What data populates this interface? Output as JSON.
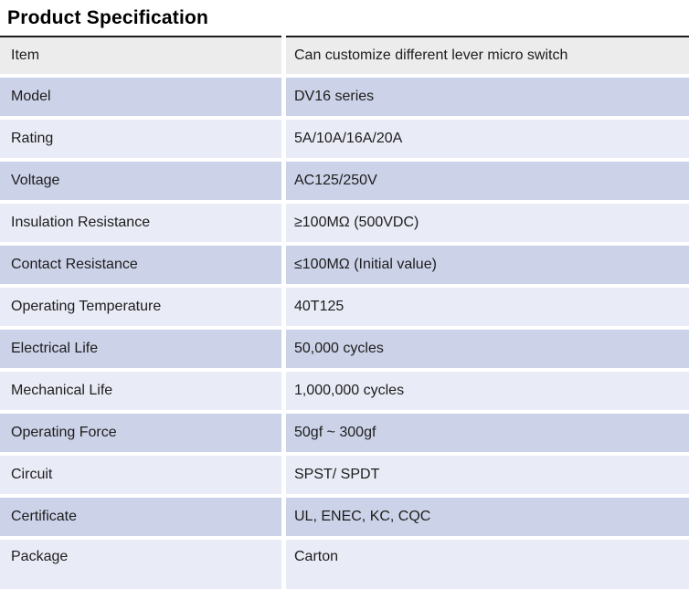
{
  "page_title": "Product Specification",
  "colors": {
    "row_gray": "#ececec",
    "row_dark": "#ccd2e8",
    "row_light": "#e9ebf6",
    "table_top_border": "#1c1c1c",
    "text": "#1d1d1d"
  },
  "table": {
    "columns": [
      "attribute",
      "value"
    ],
    "rows": [
      {
        "label": "Item",
        "value": "Can customize different lever micro switch",
        "shade": "gray"
      },
      {
        "label": "Model",
        "value": "DV16 series",
        "shade": "dark"
      },
      {
        "label": "Rating",
        "value": "5A/10A/16A/20A",
        "shade": "light"
      },
      {
        "label": "Voltage",
        "value": "AC125/250V",
        "shade": "dark"
      },
      {
        "label": "Insulation Resistance",
        "value": "≥100MΩ (500VDC)",
        "shade": "light"
      },
      {
        "label": "Contact Resistance",
        "value": "≤100MΩ (Initial value)",
        "shade": "dark"
      },
      {
        "label": "Operating Temperature",
        "value": "40T125",
        "shade": "light"
      },
      {
        "label": "Electrical Life",
        "value": "50,000 cycles",
        "shade": "dark"
      },
      {
        "label": "Mechanical Life",
        "value": "1,000,000 cycles",
        "shade": "light"
      },
      {
        "label": "Operating Force",
        "value": "50gf ~ 300gf",
        "shade": "dark"
      },
      {
        "label": "Circuit",
        "value": "SPST/ SPDT",
        "shade": "light"
      },
      {
        "label": "Certificate",
        "value": "UL, ENEC, KC, CQC",
        "shade": "dark"
      },
      {
        "label": "Package",
        "value": "Carton",
        "shade": "light"
      }
    ]
  }
}
